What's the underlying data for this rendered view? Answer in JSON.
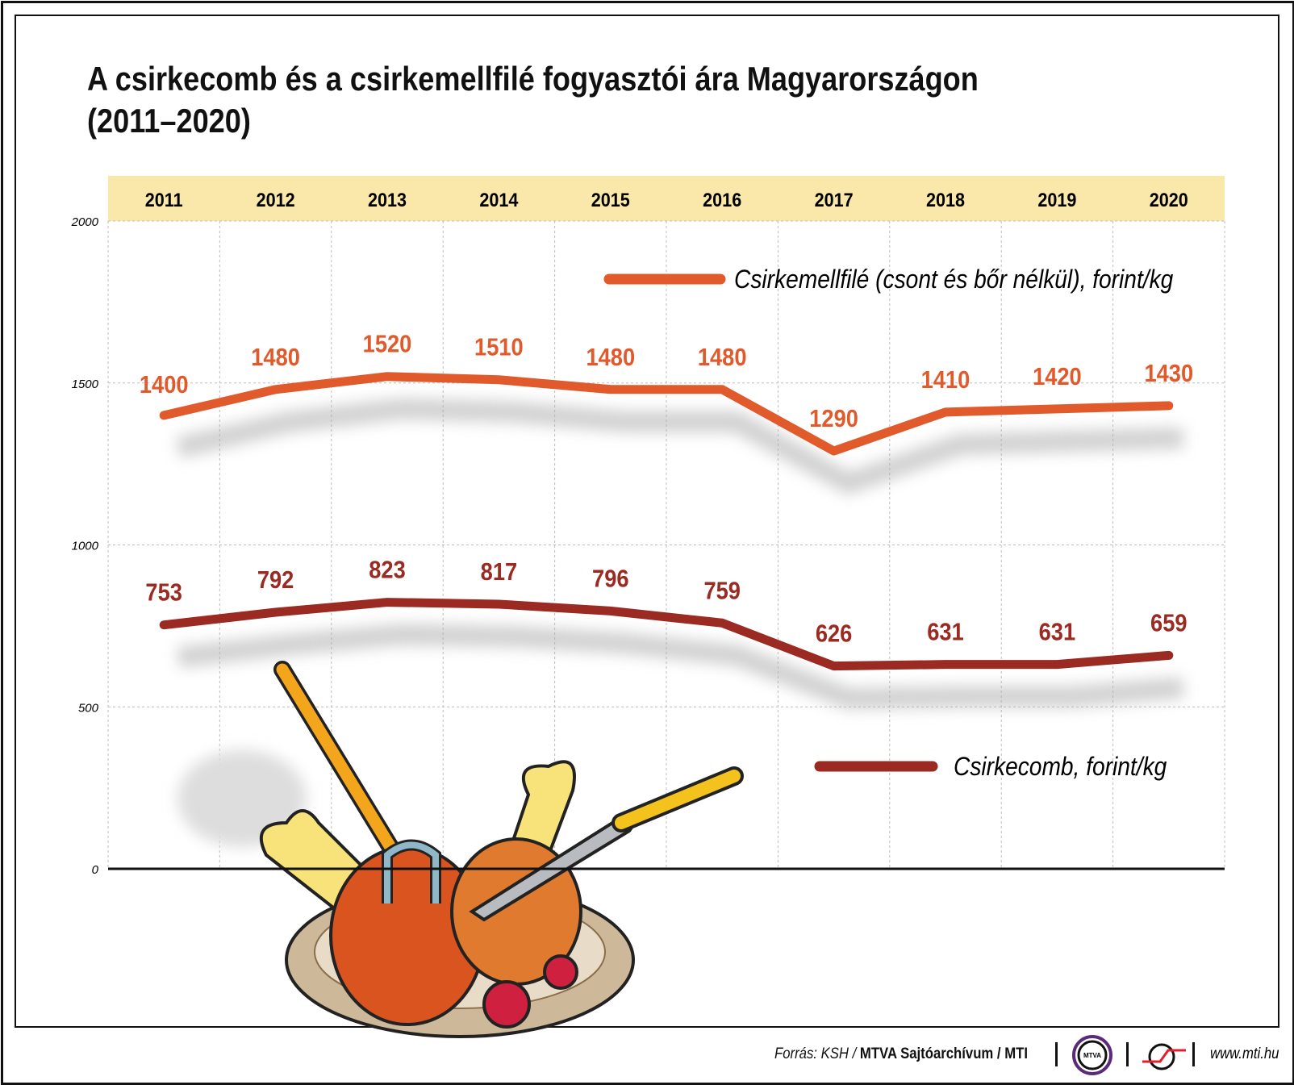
{
  "title_line1": "A csirkecomb és a csirkemellfilé fogyasztói ára Magyarországon",
  "title_line2": "(2011–2020)",
  "chart_data": {
    "type": "line",
    "title": "A csirkecomb és a csirkemellfilé fogyasztói ára Magyarországon (2011–2020)",
    "categories": [
      "2011",
      "2012",
      "2013",
      "2014",
      "2015",
      "2016",
      "2017",
      "2018",
      "2019",
      "2020"
    ],
    "ylim": [
      0,
      2000
    ],
    "yticks": [
      0,
      500,
      1000,
      1500,
      2000
    ],
    "grid": true,
    "series": [
      {
        "name": "Csirkemellfilé (csont és bőr nélkül), forint/kg",
        "color": "#e05a2b",
        "values": [
          1400,
          1480,
          1520,
          1510,
          1480,
          1480,
          1290,
          1410,
          1420,
          1430
        ]
      },
      {
        "name": "Csirkecomb, forint/kg",
        "color": "#9b2a22",
        "values": [
          753,
          792,
          823,
          817,
          796,
          759,
          626,
          631,
          631,
          659
        ]
      }
    ]
  },
  "colors": {
    "year_band": "#f9e8aa",
    "grid": "#bdbdbd"
  },
  "footer": {
    "source_prefix": "Forrás: KSH / ",
    "source_bold": "MTVA Sajtóarchívum / MTI",
    "logo1": "MTVA",
    "url": "www.mti.hu"
  }
}
